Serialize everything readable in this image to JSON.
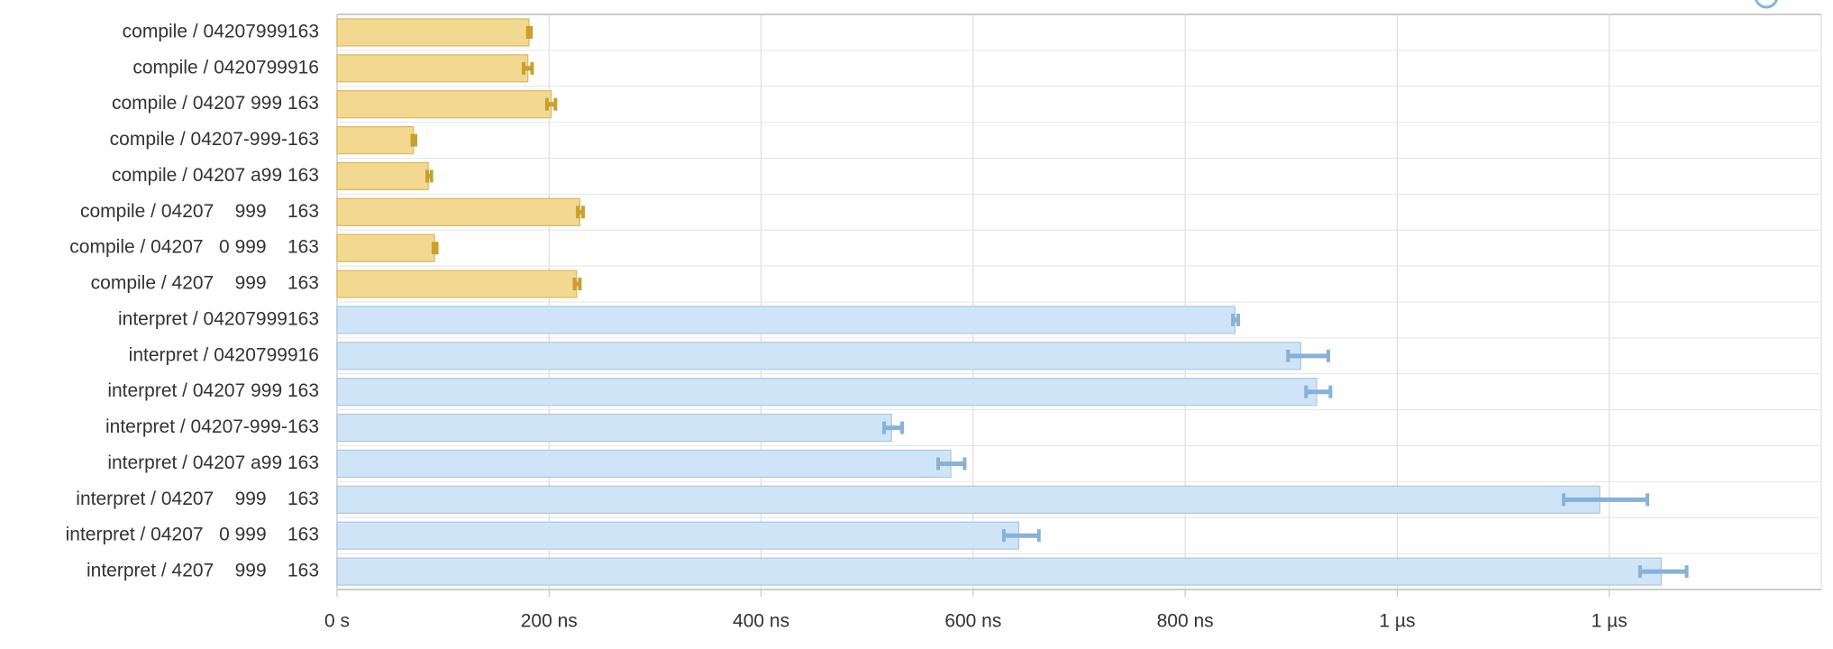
{
  "chart_data": {
    "type": "hbar",
    "categories": [
      "compile / 04207999163",
      "compile / 0420799916",
      "compile / 04207 999 163",
      "compile / 04207-999-163",
      "compile / 04207 a99 163",
      "compile / 04207    999    163",
      "compile / 04207   0 999    163",
      "compile / 4207    999    163",
      "interpret / 04207999163",
      "interpret / 0420799916",
      "interpret / 04207 999 163",
      "interpret / 04207-999-163",
      "interpret / 04207 a99 163",
      "interpret / 04207    999    163",
      "interpret / 04207   0 999    163",
      "interpret / 4207    999    163"
    ],
    "values": [
      181,
      180,
      202,
      72,
      86,
      229,
      92,
      226,
      847,
      909,
      924,
      523,
      579,
      1191,
      643,
      1249
    ],
    "ci_low": [
      180,
      176,
      198,
      71,
      85,
      227,
      91,
      224,
      845,
      897,
      914,
      516,
      567,
      1157,
      629,
      1229
    ],
    "ci_high": [
      183,
      184,
      206,
      74,
      89,
      232,
      94,
      229,
      850,
      935,
      937,
      533,
      592,
      1236,
      662,
      1273
    ],
    "colors": [
      "#f2d891",
      "#f2d891",
      "#f2d891",
      "#f2d891",
      "#f2d891",
      "#f2d891",
      "#f2d891",
      "#f2d891",
      "#cfe5f7",
      "#cfe5f7",
      "#cfe5f7",
      "#cfe5f7",
      "#cfe5f7",
      "#cfe5f7",
      "#cfe5f7",
      "#cfe5f7"
    ],
    "xlim": [
      0,
      1400
    ],
    "xticks": [
      {
        "value": 0,
        "label": "0 s"
      },
      {
        "value": 200,
        "label": "200 ns"
      },
      {
        "value": 400,
        "label": "400 ns"
      },
      {
        "value": 600,
        "label": "600 ns"
      },
      {
        "value": 800,
        "label": "800 ns"
      },
      {
        "value": 1000,
        "label": "1 µs"
      },
      {
        "value": 1200,
        "label": "1 µs"
      }
    ],
    "grid": true
  }
}
